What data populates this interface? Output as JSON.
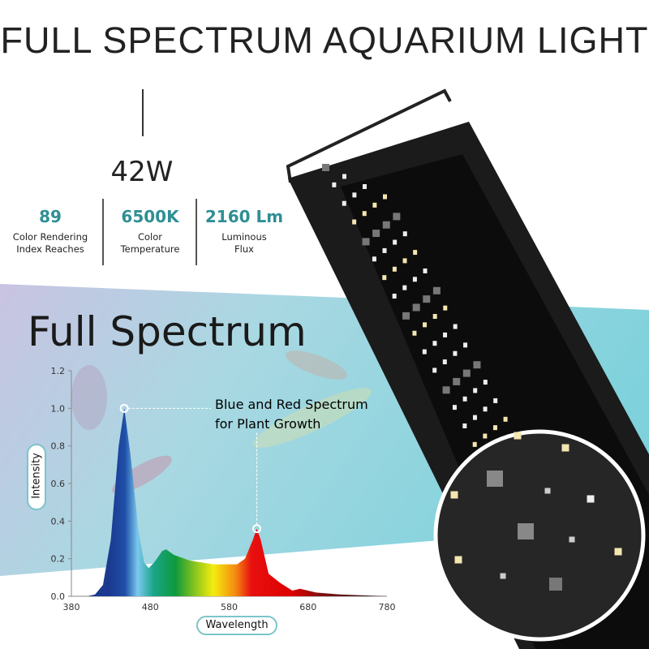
{
  "header": {
    "title": "FULL SPECTRUM AQUARIUM LIGHT",
    "wattage": "42W"
  },
  "stats": [
    {
      "value": "89",
      "label_1": "Color Rendering",
      "label_2": "Index Reaches"
    },
    {
      "value": "6500K",
      "label_1": "Color",
      "label_2": "Temperature"
    },
    {
      "value": "2160 Lm",
      "label_1": "Luminous",
      "label_2": "Flux"
    }
  ],
  "colors": {
    "accent": "#2e8f95",
    "fixture": "#1b1b1b",
    "pill_border": "#7cc4c8"
  },
  "section_title": "Full Spectrum",
  "chart_data": {
    "type": "area",
    "xlabel": "Wavelength",
    "ylabel": "Intensity",
    "xlim": [
      380,
      780
    ],
    "ylim": [
      0,
      1.2
    ],
    "xticks": [
      "380",
      "480",
      "580",
      "680",
      "780"
    ],
    "yticks": [
      "0.0",
      "0.2",
      "0.4",
      "0.6",
      "0.8",
      "1.0",
      "1.2"
    ],
    "annotation_1": "Blue and Red Spectrum",
    "annotation_2": "for Plant Growth",
    "peaks": [
      {
        "x": 447,
        "y": 1.0
      },
      {
        "x": 615,
        "y": 0.36
      }
    ],
    "x": [
      400,
      410,
      420,
      430,
      440,
      447,
      455,
      465,
      472,
      478,
      485,
      495,
      500,
      510,
      530,
      560,
      590,
      600,
      610,
      615,
      620,
      630,
      645,
      660,
      670,
      690,
      720,
      780
    ],
    "y": [
      0,
      0.01,
      0.06,
      0.3,
      0.8,
      1.0,
      0.75,
      0.35,
      0.18,
      0.15,
      0.18,
      0.24,
      0.25,
      0.22,
      0.19,
      0.17,
      0.17,
      0.2,
      0.3,
      0.36,
      0.3,
      0.12,
      0.07,
      0.03,
      0.04,
      0.02,
      0.01,
      0
    ]
  }
}
